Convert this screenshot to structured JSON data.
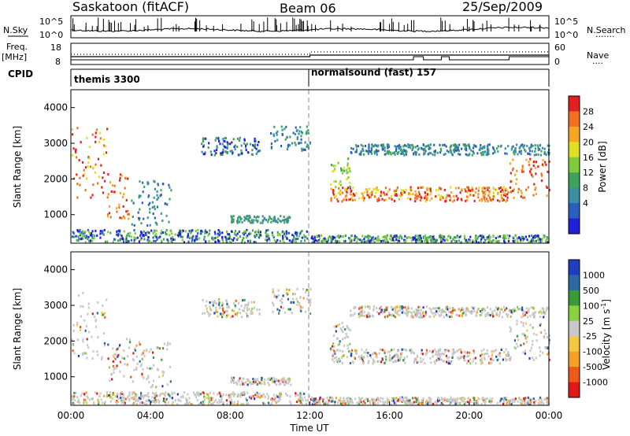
{
  "header": {
    "station": "Saskatoon (fitACF)",
    "beam": "Beam 06",
    "date": "25/Sep/2009"
  },
  "panel_labels": {
    "nsky": "N.Sky",
    "nsearch": "N.Search",
    "freq_top": "Freq.",
    "freq_bottom": "[MHz]",
    "nave": "Nave",
    "cpid": "CPID",
    "dots1": "·······",
    "dots2": "····"
  },
  "colors": {
    "power": [
      "#1f1fd8",
      "#2a5fbf",
      "#3a8fa0",
      "#3ea35a",
      "#7fcc3a",
      "#e0e020",
      "#f5a623",
      "#f07020",
      "#e02020"
    ],
    "velocity": [
      "#e01818",
      "#f05a18",
      "#f5a020",
      "#f5c842",
      "#c8c8c8",
      "#8ad040",
      "#3a9a3a",
      "#2a6aa0",
      "#1f3fc0"
    ]
  },
  "chart_data": [
    {
      "type": "line",
      "name": "noise",
      "ylabel_left": "N.Sky",
      "ylabel_right": "N.Search",
      "left_ticks": [
        "10^5",
        "10^0"
      ],
      "right_ticks": [
        "10^5",
        "10^0"
      ],
      "xlim": [
        0,
        24
      ],
      "ylim_log10": [
        0,
        5
      ]
    },
    {
      "type": "line",
      "name": "freq-nave",
      "ylabel_left": "Freq. [MHz]",
      "ylabel_right": "Nave",
      "left_ticks": [
        "18",
        "8"
      ],
      "right_ticks": [
        "60",
        "0"
      ],
      "ylim_left": [
        8,
        18
      ],
      "ylim_right": [
        0,
        60
      ],
      "xlim": [
        0,
        24
      ]
    },
    {
      "type": "table",
      "name": "cpid",
      "ylabel": "CPID",
      "segments": [
        {
          "start": 0,
          "end": 12,
          "label": "themis 3300"
        },
        {
          "start": 12,
          "end": 24,
          "label": "normalsound (fast) 157"
        }
      ]
    },
    {
      "type": "heatmap",
      "name": "power",
      "ylabel": "Slant Range [km]",
      "ylim": [
        200,
        4500
      ],
      "yticks": [
        "1000",
        "2000",
        "3000",
        "4000"
      ],
      "xlim": [
        0,
        24
      ],
      "colorbar_label": "Power [dB]",
      "colorbar_ticks": [
        "4",
        "8",
        "12",
        "16",
        "20",
        "24",
        "28"
      ]
    },
    {
      "type": "heatmap",
      "name": "velocity",
      "ylabel": "Slant Range [km]",
      "ylim": [
        200,
        4500
      ],
      "yticks": [
        "1000",
        "2000",
        "3000",
        "4000"
      ],
      "xlim": [
        0,
        24
      ],
      "xlabel": "Time UT",
      "xticks": [
        "00:00",
        "04:00",
        "08:00",
        "12:00",
        "16:00",
        "20:00",
        "00:00"
      ],
      "colorbar_label": "Velocity [m s",
      "colorbar_label_sup": "-1",
      "colorbar_label_end": "]",
      "colorbar_ticks": [
        "1000",
        "500",
        "100",
        "25",
        "-25",
        "-100",
        "-500",
        "-1000"
      ]
    }
  ]
}
